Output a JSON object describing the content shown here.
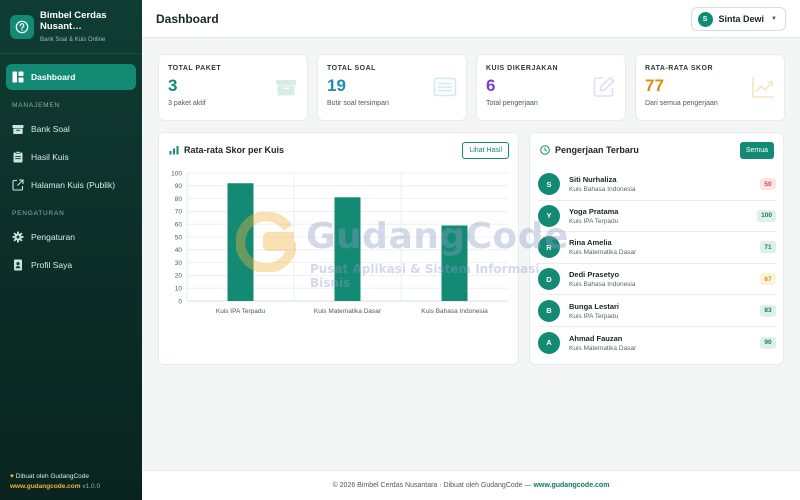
{
  "brand": {
    "name": "Bimbel Cerdas Nusant…",
    "tagline": "Bank Soal & Kuis Online"
  },
  "nav": {
    "dashboard": "Dashboard",
    "section_manage": "MANAJEMEN",
    "bank_soal": "Bank Soal",
    "hasil_kuis": "Hasil Kuis",
    "halaman_kuis": "Halaman Kuis (Publik)",
    "section_settings": "PENGATURAN",
    "pengaturan": "Pengaturan",
    "profil": "Profil Saya"
  },
  "sidebar_footer": {
    "credit": "Dibuat oleh GudangCode",
    "site": "www.gudangcode.com",
    "version": "v1.0.0"
  },
  "topbar": {
    "title": "Dashboard",
    "user_initial": "S",
    "user_name": "Sinta Dewi"
  },
  "stats": [
    {
      "label": "TOTAL PAKET",
      "value": "3",
      "sub": "3 paket aktif",
      "color": "#138a74",
      "icon": "box-icon"
    },
    {
      "label": "TOTAL SOAL",
      "value": "19",
      "sub": "Butir soal tersimpan",
      "color": "#1f8fb0",
      "icon": "list-icon"
    },
    {
      "label": "KUIS DIKERJAKAN",
      "value": "6",
      "sub": "Total pengerjaan",
      "color": "#7a3fd1",
      "icon": "pencil-square-icon"
    },
    {
      "label": "RATA-RATA SKOR",
      "value": "77",
      "sub": "Dari semua pengerjaan",
      "color": "#e08a12",
      "icon": "trend-up-icon"
    }
  ],
  "chart_card": {
    "title": "Rata-rata Skor per Kuis",
    "button": "Lihat Hasil"
  },
  "chart_data": {
    "type": "bar",
    "categories": [
      "Kuis IPA Terpadu",
      "Kuis Matematika Dasar",
      "Kuis Bahasa Indonesia"
    ],
    "values": [
      92,
      81,
      59
    ],
    "ylim": [
      0,
      100
    ],
    "yticks": [
      0,
      10,
      20,
      30,
      40,
      50,
      60,
      70,
      80,
      90,
      100
    ],
    "color": "#138a74",
    "grid": true
  },
  "recent_card": {
    "title": "Pengerjaan Terbaru",
    "button": "Semua",
    "items": [
      {
        "initial": "S",
        "name": "Siti Nurhaliza",
        "quiz": "Kuis Bahasa Indonesia",
        "score": "50",
        "level": "low"
      },
      {
        "initial": "Y",
        "name": "Yoga Pratama",
        "quiz": "Kuis IPA Terpadu",
        "score": "100",
        "level": "high"
      },
      {
        "initial": "R",
        "name": "Rina Amelia",
        "quiz": "Kuis Matematika Dasar",
        "score": "71",
        "level": "high"
      },
      {
        "initial": "D",
        "name": "Dedi Prasetyo",
        "quiz": "Kuis Bahasa Indonesia",
        "score": "67",
        "level": "mid"
      },
      {
        "initial": "B",
        "name": "Bunga Lestari",
        "quiz": "Kuis IPA Terpadu",
        "score": "83",
        "level": "high"
      },
      {
        "initial": "A",
        "name": "Ahmad Fauzan",
        "quiz": "Kuis Matematika Dasar",
        "score": "90",
        "level": "high"
      }
    ],
    "score_colors": {
      "low": {
        "bg": "#fde3e3",
        "fg": "#d04545"
      },
      "mid": {
        "bg": "#fdf3d6",
        "fg": "#c99a1c"
      },
      "high": {
        "bg": "#dcf1e7",
        "fg": "#1f7a5a"
      }
    }
  },
  "footer": {
    "text": "© 2026 Bimbel Cerdas Nusantara · Dibuat oleh GudangCode — ",
    "link": "www.gudangcode.com"
  },
  "watermark": {
    "title": "GudangCode",
    "subtitle": "Pusat Aplikasi & Sistem Informasi Bisnis"
  }
}
